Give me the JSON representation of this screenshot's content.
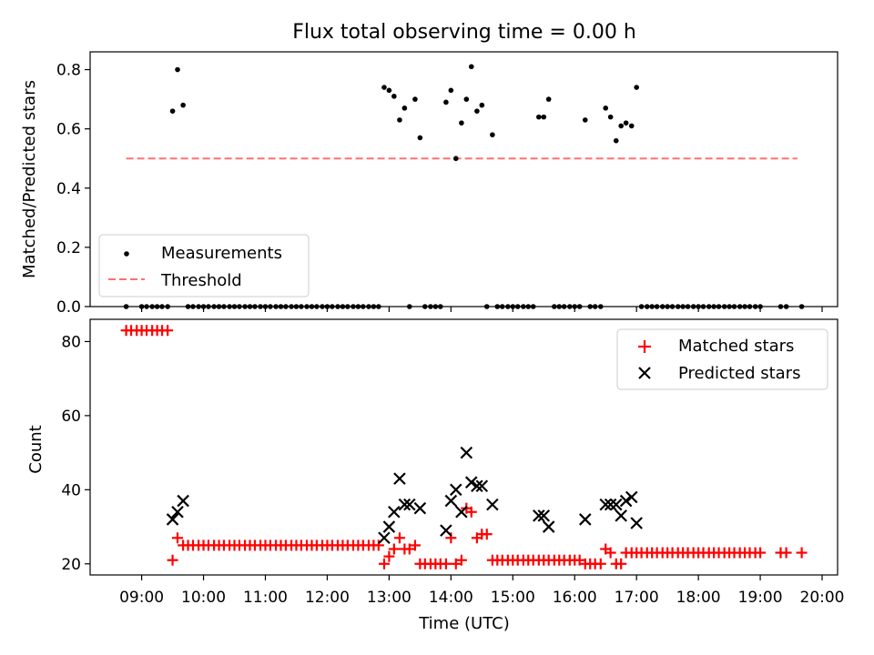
{
  "chart_data": [
    {
      "type": "scatter",
      "title": "Flux total observing time = 0.00 h",
      "xlabel": "",
      "ylabel": "Matched/Predicted stars",
      "xlim": [
        8.167,
        20.25
      ],
      "ylim": [
        0.0,
        0.86
      ],
      "yticks": [
        0.0,
        0.2,
        0.4,
        0.6,
        0.8
      ],
      "ytick_labels": [
        "0.0",
        "0.2",
        "0.4",
        "0.6",
        "0.8"
      ],
      "legend_position": "lower-left",
      "series": [
        {
          "name": "Measurements",
          "marker": "dot",
          "color": "#000000",
          "x": [
            8.75,
            9.0,
            9.08,
            9.17,
            9.25,
            9.33,
            9.42,
            9.5,
            9.58,
            9.67,
            9.75,
            9.83,
            9.92,
            10.0,
            10.08,
            10.17,
            10.25,
            10.33,
            10.42,
            10.5,
            10.58,
            10.67,
            10.75,
            10.83,
            10.92,
            11.0,
            11.08,
            11.17,
            11.25,
            11.33,
            11.42,
            11.5,
            11.58,
            11.67,
            11.75,
            11.83,
            11.92,
            12.0,
            12.08,
            12.17,
            12.25,
            12.33,
            12.42,
            12.5,
            12.58,
            12.67,
            12.75,
            12.83,
            12.92,
            13.0,
            13.08,
            13.17,
            13.25,
            13.33,
            13.42,
            13.5,
            13.58,
            13.67,
            13.75,
            13.83,
            13.92,
            14.0,
            14.08,
            14.17,
            14.25,
            14.33,
            14.42,
            14.5,
            14.58,
            14.67,
            14.75,
            14.83,
            14.92,
            15.0,
            15.08,
            15.17,
            15.25,
            15.33,
            15.42,
            15.5,
            15.58,
            15.67,
            15.75,
            15.83,
            15.92,
            16.0,
            16.08,
            16.17,
            16.25,
            16.33,
            16.42,
            16.5,
            16.58,
            16.67,
            16.75,
            16.83,
            16.92,
            17.0,
            17.08,
            17.17,
            17.25,
            17.33,
            17.42,
            17.5,
            17.58,
            17.67,
            17.75,
            17.83,
            17.92,
            18.0,
            18.08,
            18.17,
            18.25,
            18.33,
            18.42,
            18.5,
            18.58,
            18.67,
            18.75,
            18.83,
            18.92,
            19.0,
            19.33,
            19.42,
            19.67
          ],
          "y": [
            0.0,
            0.0,
            0.0,
            0.0,
            0.0,
            0.0,
            0.0,
            0.66,
            0.8,
            0.68,
            0.0,
            0.0,
            0.0,
            0.0,
            0.0,
            0.0,
            0.0,
            0.0,
            0.0,
            0.0,
            0.0,
            0.0,
            0.0,
            0.0,
            0.0,
            0.0,
            0.0,
            0.0,
            0.0,
            0.0,
            0.0,
            0.0,
            0.0,
            0.0,
            0.0,
            0.0,
            0.0,
            0.0,
            0.0,
            0.0,
            0.0,
            0.0,
            0.0,
            0.0,
            0.0,
            0.0,
            0.0,
            0.0,
            0.74,
            0.73,
            0.71,
            0.63,
            0.67,
            0.0,
            0.7,
            0.57,
            0.0,
            0.0,
            0.0,
            0.0,
            0.69,
            0.73,
            0.5,
            0.62,
            0.7,
            0.81,
            0.66,
            0.68,
            0.0,
            0.58,
            0.0,
            0.0,
            0.0,
            0.0,
            0.0,
            0.0,
            0.0,
            0.0,
            0.64,
            0.64,
            0.7,
            0.0,
            0.0,
            0.0,
            0.0,
            0.0,
            0.0,
            0.63,
            0.0,
            0.0,
            0.0,
            0.67,
            0.64,
            0.56,
            0.61,
            0.62,
            0.61,
            0.74,
            0.0,
            0.0,
            0.0,
            0.0,
            0.0,
            0.0,
            0.0,
            0.0,
            0.0,
            0.0,
            0.0,
            0.0,
            0.0,
            0.0,
            0.0,
            0.0,
            0.0,
            0.0,
            0.0,
            0.0,
            0.0,
            0.0,
            0.0,
            0.0,
            0.0,
            0.0,
            0.0
          ]
        },
        {
          "name": "Threshold",
          "style": "dashed-line",
          "color": "#ff7070",
          "x": [
            8.75,
            19.6
          ],
          "y": [
            0.5,
            0.5
          ]
        }
      ]
    },
    {
      "type": "scatter",
      "title": "",
      "xlabel": "Time (UTC)",
      "ylabel": "Count",
      "xlim": [
        8.167,
        20.25
      ],
      "ylim": [
        17,
        86
      ],
      "yticks": [
        20,
        40,
        60,
        80
      ],
      "ytick_labels": [
        "20",
        "40",
        "60",
        "80"
      ],
      "xticks": [
        9,
        10,
        11,
        12,
        13,
        14,
        15,
        16,
        17,
        18,
        19,
        20
      ],
      "xtick_labels": [
        "09:00",
        "10:00",
        "11:00",
        "12:00",
        "13:00",
        "14:00",
        "15:00",
        "16:00",
        "17:00",
        "18:00",
        "19:00",
        "20:00"
      ],
      "legend_position": "upper-right",
      "series": [
        {
          "name": "Matched stars",
          "marker": "plus",
          "color": "#ff0000",
          "x": [
            8.75,
            8.83,
            8.92,
            9.0,
            9.08,
            9.17,
            9.25,
            9.33,
            9.42,
            9.5,
            9.58,
            9.67,
            9.75,
            9.83,
            9.92,
            10.0,
            10.08,
            10.17,
            10.25,
            10.33,
            10.42,
            10.5,
            10.58,
            10.67,
            10.75,
            10.83,
            10.92,
            11.0,
            11.08,
            11.17,
            11.25,
            11.33,
            11.42,
            11.5,
            11.58,
            11.67,
            11.75,
            11.83,
            11.92,
            12.0,
            12.08,
            12.17,
            12.25,
            12.33,
            12.42,
            12.5,
            12.58,
            12.67,
            12.75,
            12.83,
            12.92,
            13.0,
            13.08,
            13.17,
            13.25,
            13.33,
            13.42,
            13.5,
            13.58,
            13.67,
            13.75,
            13.83,
            13.92,
            14.0,
            14.08,
            14.17,
            14.25,
            14.33,
            14.42,
            14.5,
            14.58,
            14.67,
            14.75,
            14.83,
            14.92,
            15.0,
            15.08,
            15.17,
            15.25,
            15.33,
            15.42,
            15.5,
            15.58,
            15.67,
            15.75,
            15.83,
            15.92,
            16.0,
            16.08,
            16.17,
            16.25,
            16.33,
            16.42,
            16.5,
            16.58,
            16.67,
            16.75,
            16.83,
            16.92,
            17.0,
            17.08,
            17.17,
            17.25,
            17.33,
            17.42,
            17.5,
            17.58,
            17.67,
            17.75,
            17.83,
            17.92,
            18.0,
            18.08,
            18.17,
            18.25,
            18.33,
            18.42,
            18.5,
            18.58,
            18.67,
            18.75,
            18.83,
            18.92,
            19.0,
            19.33,
            19.42,
            19.67
          ],
          "y": [
            83,
            83,
            83,
            83,
            83,
            83,
            83,
            83,
            83,
            21,
            27,
            25,
            25,
            25,
            25,
            25,
            25,
            25,
            25,
            25,
            25,
            25,
            25,
            25,
            25,
            25,
            25,
            25,
            25,
            25,
            25,
            25,
            25,
            25,
            25,
            25,
            25,
            25,
            25,
            25,
            25,
            25,
            25,
            25,
            25,
            25,
            25,
            25,
            25,
            25,
            20,
            22,
            24,
            27,
            24,
            24,
            25,
            20,
            20,
            20,
            20,
            20,
            20,
            27,
            20,
            21,
            35,
            34,
            27,
            28,
            28,
            21,
            21,
            21,
            21,
            21,
            21,
            21,
            21,
            21,
            21,
            21,
            21,
            21,
            21,
            21,
            21,
            21,
            21,
            20,
            20,
            20,
            20,
            24,
            23,
            20,
            20,
            23,
            23,
            23,
            23,
            23,
            23,
            23,
            23,
            23,
            23,
            23,
            23,
            23,
            23,
            23,
            23,
            23,
            23,
            23,
            23,
            23,
            23,
            23,
            23,
            23,
            23,
            23,
            23,
            23,
            23
          ]
        },
        {
          "name": "Predicted stars",
          "marker": "x",
          "color": "#000000",
          "x": [
            9.5,
            9.58,
            9.67,
            12.92,
            13.0,
            13.08,
            13.17,
            13.25,
            13.33,
            13.5,
            13.92,
            14.0,
            14.08,
            14.17,
            14.25,
            14.33,
            14.42,
            14.5,
            14.67,
            15.42,
            15.5,
            15.58,
            16.17,
            16.5,
            16.58,
            16.67,
            16.75,
            16.83,
            16.92,
            17.0
          ],
          "y": [
            32,
            34,
            37,
            27,
            30,
            34,
            43,
            36,
            36,
            35,
            29,
            37,
            40,
            34,
            50,
            42,
            41,
            41,
            36,
            33,
            33,
            30,
            32,
            36,
            36,
            36,
            33,
            37,
            38,
            31
          ]
        }
      ]
    }
  ]
}
